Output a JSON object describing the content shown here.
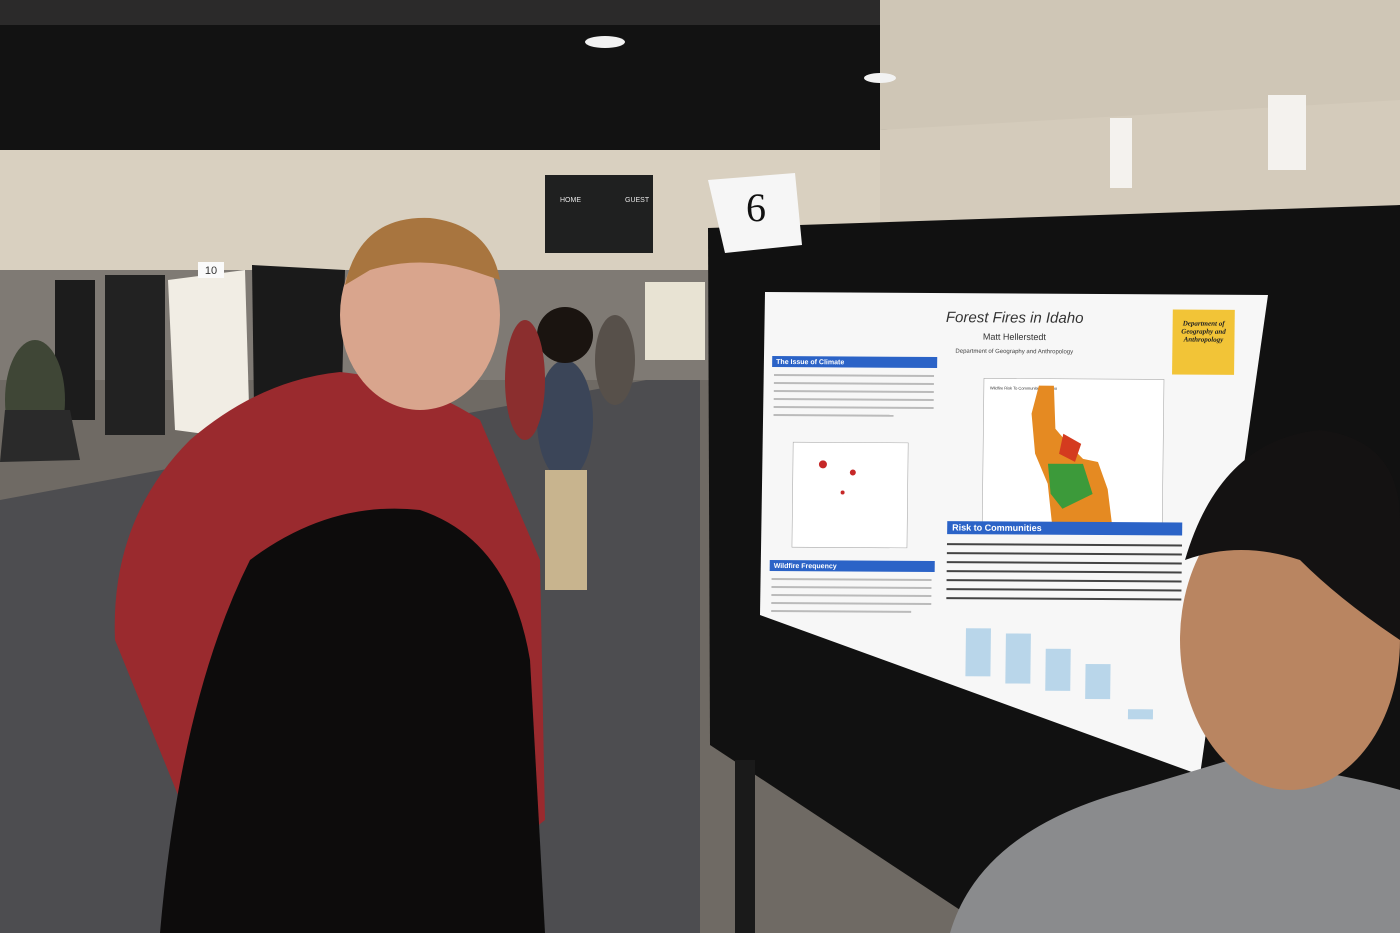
{
  "scene": {
    "scoreboard": {
      "home": "HOME",
      "guest": "GUEST"
    },
    "booth_number": "10",
    "card_number": "6",
    "poster": {
      "title": "Forest Fires in Idaho",
      "author": "Matt Hellerstedt",
      "department": "Department of Geography and Anthropology",
      "department_box": "Department of Geography and Anthropology",
      "sections": [
        "The Issue of Climate",
        "Wildfire Frequency",
        "Risk to Communities"
      ],
      "map_title": "Wildfire Risk To Communities in Idaho"
    }
  }
}
